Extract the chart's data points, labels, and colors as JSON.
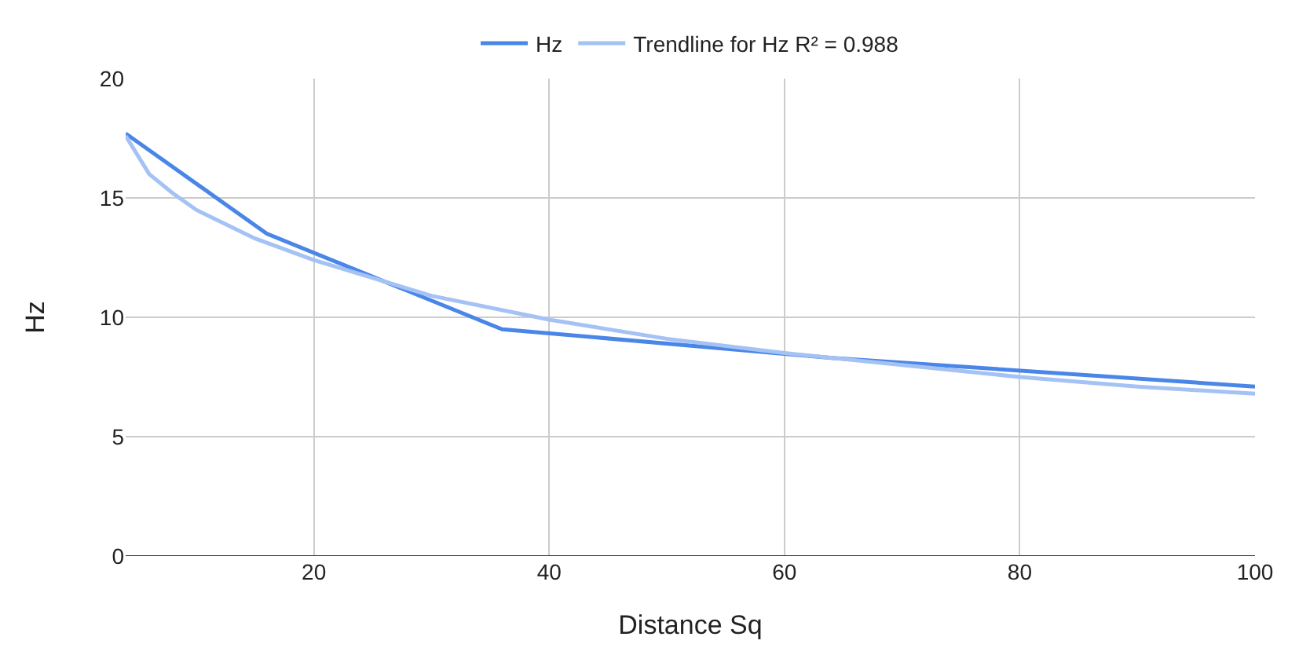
{
  "chart_data": {
    "type": "line",
    "xlabel": "Distance Sq",
    "ylabel": "Hz",
    "series": [
      {
        "name": "Hz",
        "color": "#4a86e8",
        "x": [
          4,
          16,
          36,
          64,
          100
        ],
        "values": [
          17.7,
          13.5,
          9.5,
          8.3,
          7.1
        ]
      },
      {
        "name": "Trendline for Hz R² = 0.988",
        "color": "#a4c2f4",
        "x": [
          4,
          6,
          8,
          10,
          15,
          20,
          30,
          40,
          50,
          60,
          70,
          80,
          90,
          100
        ],
        "values": [
          17.6,
          16.0,
          15.2,
          14.5,
          13.3,
          12.4,
          10.9,
          9.9,
          9.1,
          8.5,
          8.0,
          7.5,
          7.1,
          6.8
        ]
      }
    ],
    "xlim": [
      4,
      100
    ],
    "xticks": [
      20,
      40,
      60,
      80,
      100
    ],
    "ylim": [
      0,
      20
    ],
    "yticks": [
      0,
      5,
      10,
      15,
      20
    ],
    "grid": true,
    "legend": "top",
    "marker": "none",
    "line_style": "solid"
  }
}
